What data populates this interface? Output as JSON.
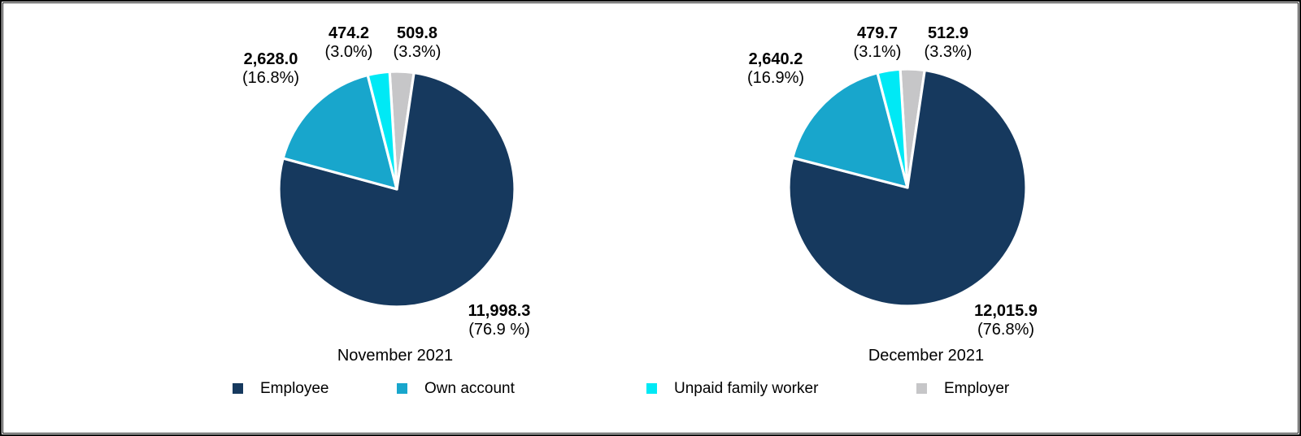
{
  "frame": {
    "background": "#ffffff",
    "border_color": "#000000"
  },
  "legend": {
    "position": "bottom",
    "items": [
      {
        "label": "Employee",
        "color": "#16395E"
      },
      {
        "label": "Own account",
        "color": "#18A6CC"
      },
      {
        "label": "Unpaid family worker",
        "color": "#00E9F5"
      },
      {
        "label": "Employer",
        "color": "#C6C6C8"
      }
    ]
  },
  "chart_data": [
    {
      "type": "pie",
      "title": "November 2021",
      "categories": [
        "Employee",
        "Own account",
        "Unpaid family worker",
        "Employer"
      ],
      "values": [
        11998.3,
        2628.0,
        474.2,
        509.8
      ],
      "percentages": [
        76.9,
        16.8,
        3.0,
        3.3
      ],
      "value_labels": [
        "11,998.3",
        "2,628.0",
        "474.2",
        "509.8"
      ],
      "pct_labels": [
        "(76.9 %)",
        "(16.8%)",
        "(3.0%)",
        "(3.3%)"
      ],
      "colors": [
        "#16395E",
        "#18A6CC",
        "#00E9F5",
        "#C6C6C8"
      ],
      "slice_border_color": "#ffffff",
      "start_angle_deg": -3.5,
      "clockwise_draw_order": [
        3,
        0,
        1,
        2
      ],
      "legend_position": "bottom"
    },
    {
      "type": "pie",
      "title": "December 2021",
      "categories": [
        "Employee",
        "Own account",
        "Unpaid family worker",
        "Employer"
      ],
      "values": [
        12015.9,
        2640.2,
        479.7,
        512.9
      ],
      "percentages": [
        76.8,
        16.9,
        3.1,
        3.3
      ],
      "value_labels": [
        "12,015.9",
        "2,640.2",
        "479.7",
        "512.9"
      ],
      "pct_labels": [
        "(76.8%)",
        "(16.9%)",
        "(3.1%)",
        "(3.3%)"
      ],
      "colors": [
        "#16395E",
        "#18A6CC",
        "#00E9F5",
        "#C6C6C8"
      ],
      "slice_border_color": "#ffffff",
      "start_angle_deg": -3.5,
      "clockwise_draw_order": [
        3,
        0,
        1,
        2
      ],
      "legend_position": "bottom"
    }
  ]
}
